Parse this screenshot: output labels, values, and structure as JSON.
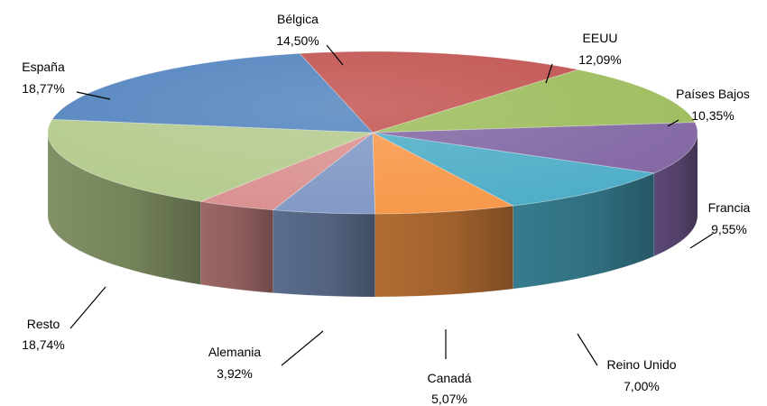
{
  "chart_data": {
    "type": "pie",
    "style": "3d-exploded-perspective",
    "slices": [
      {
        "name": "Bélgica",
        "value": "14,50%",
        "pct": 14.5,
        "color": "#C0504D"
      },
      {
        "name": "EEUU",
        "value": "12,09%",
        "pct": 12.09,
        "color": "#9BBB59"
      },
      {
        "name": "Países Bajos",
        "value": "10,35%",
        "pct": 10.35,
        "color": "#8064A2"
      },
      {
        "name": "Francia",
        "value": "9,55%",
        "pct": 9.55,
        "color": "#4BACC6"
      },
      {
        "name": "Reino Unido",
        "value": "7,00%",
        "pct": 7.0,
        "color": "#F79646"
      },
      {
        "name": "Canadá",
        "value": "5,07%",
        "pct": 5.07,
        "color": "#7F97C4"
      },
      {
        "name": "Alemania",
        "value": "3,92%",
        "pct": 3.92,
        "color": "#D98F8E"
      },
      {
        "name": "Resto",
        "value": "18,74%",
        "pct": 18.74,
        "color": "#B3C98B"
      },
      {
        "name": "España",
        "value": "18,77%",
        "pct": 18.77,
        "color": "#4F81BD"
      }
    ]
  }
}
